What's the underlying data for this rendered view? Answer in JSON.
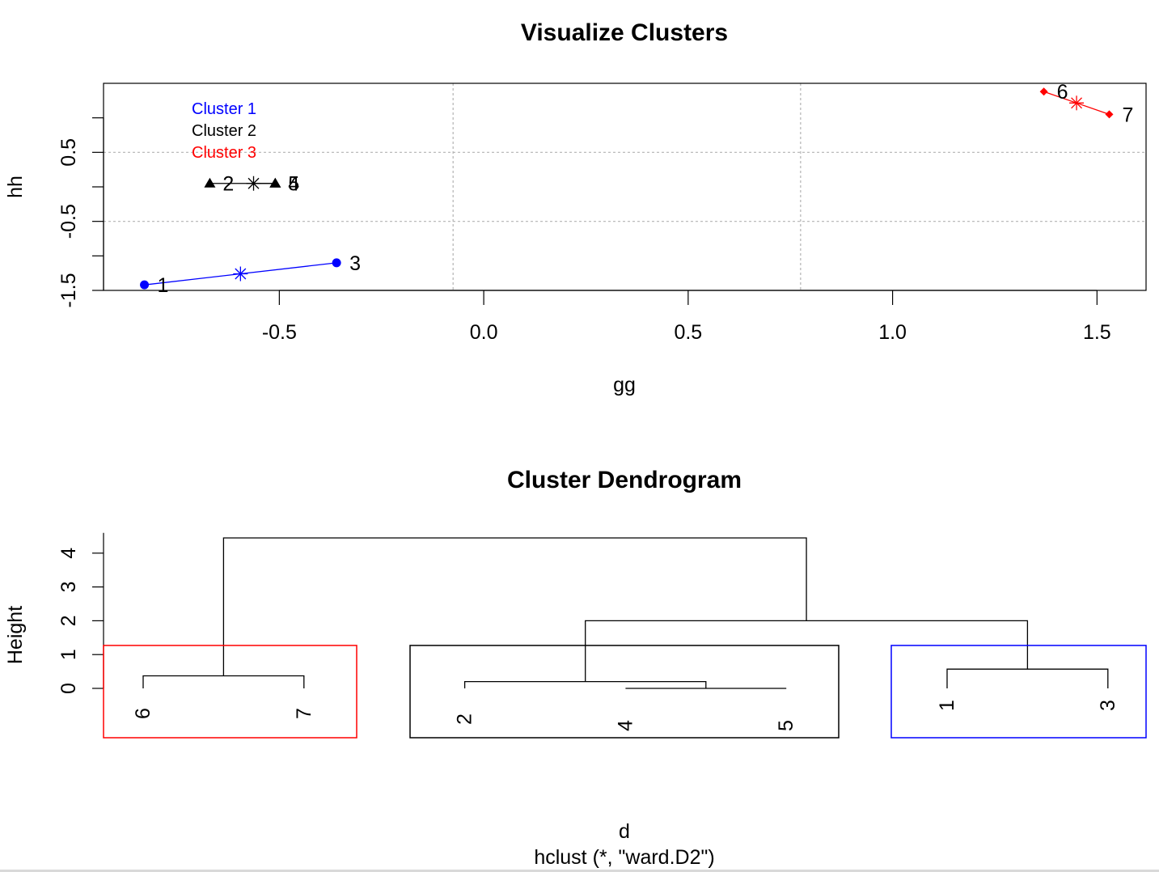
{
  "chart_data": [
    {
      "type": "scatter",
      "title": "Visualize Clusters",
      "xlabel": "gg",
      "ylabel": "hh",
      "xlim": [
        -0.93,
        1.62
      ],
      "ylim": [
        -1.5,
        1.5
      ],
      "x_ticks": [
        -0.5,
        0.0,
        0.5,
        1.0,
        1.5
      ],
      "x_tick_labels": [
        "-0.5",
        "0.0",
        "0.5",
        "1.0",
        "1.5"
      ],
      "y_ticks": [
        -1.5,
        -1.0,
        -0.5,
        0.0,
        0.5,
        1.0
      ],
      "y_tick_labels": [
        "-1.5",
        "",
        "-0.5",
        "",
        "0.5",
        ""
      ],
      "grid_x": [
        -0.075,
        0.775
      ],
      "grid_y": [
        -0.5,
        0.5
      ],
      "legend": [
        "Cluster 1",
        "Cluster 2",
        "Cluster 3"
      ],
      "legend_placement": "top-left",
      "series": [
        {
          "name": "Cluster 1",
          "color": "#0000ff",
          "marker": "circle",
          "points": [
            {
              "label": "1",
              "x": -0.83,
              "y": -1.42
            },
            {
              "label": "3",
              "x": -0.36,
              "y": -1.1
            }
          ],
          "center": {
            "x": -0.595,
            "y": -1.26
          }
        },
        {
          "name": "Cluster 2",
          "color": "#000000",
          "marker": "triangle",
          "points": [
            {
              "label": "2",
              "x": -0.67,
              "y": 0.05
            },
            {
              "label": "4",
              "x": -0.51,
              "y": 0.05
            },
            {
              "label": "5",
              "x": -0.51,
              "y": 0.05
            }
          ],
          "center": {
            "x": -0.563,
            "y": 0.05
          }
        },
        {
          "name": "Cluster 3",
          "color": "#ff0000",
          "marker": "diamond",
          "points": [
            {
              "label": "6",
              "x": 1.37,
              "y": 1.38
            },
            {
              "label": "7",
              "x": 1.53,
              "y": 1.05
            }
          ],
          "center": {
            "x": 1.45,
            "y": 1.215
          }
        }
      ]
    },
    {
      "type": "dendrogram",
      "title": "Cluster Dendrogram",
      "xlabel": "d",
      "sub": "hclust (*, \"ward.D2\")",
      "ylabel": "Height",
      "ylim": [
        0,
        4.5
      ],
      "y_ticks": [
        0,
        1,
        2,
        3,
        4
      ],
      "y_tick_labels": [
        "0",
        "1",
        "2",
        "3",
        "4"
      ],
      "order": [
        "6",
        "7",
        "2",
        "4",
        "5",
        "1",
        "3"
      ],
      "merges": [
        {
          "left": "6",
          "right": "7",
          "height": 0.37
        },
        {
          "left": "4",
          "right": "5",
          "height": 0.0
        },
        {
          "left": "2",
          "right": "4-5",
          "height": 0.2
        },
        {
          "left": "1",
          "right": "3",
          "height": 0.57
        },
        {
          "left": "2-4-5",
          "right": "1-3",
          "height": 2.0
        },
        {
          "left": "6-7",
          "right": "2-4-5-1-3",
          "height": 4.45
        }
      ],
      "rect_height": 1.27,
      "cluster_boxes": [
        {
          "members": [
            "6",
            "7"
          ],
          "color": "#ff0000"
        },
        {
          "members": [
            "2",
            "4",
            "5"
          ],
          "color": "#000000"
        },
        {
          "members": [
            "1",
            "3"
          ],
          "color": "#0000ff"
        }
      ]
    }
  ]
}
